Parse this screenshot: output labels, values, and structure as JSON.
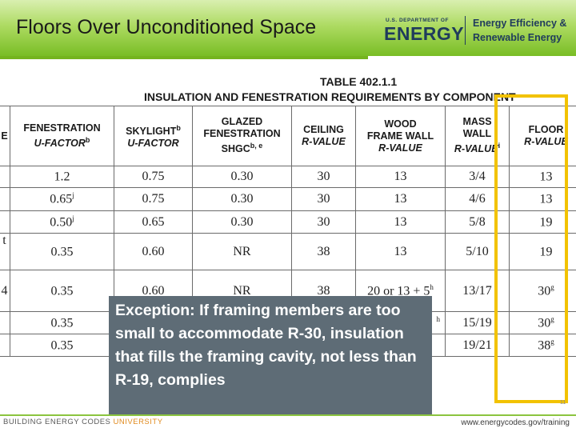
{
  "header": {
    "title": "Floors Over Unconditioned Space",
    "doe_small": "U.S. DEPARTMENT OF",
    "doe_big": "ENERGY",
    "eere_line1": "Energy Efficiency &",
    "eere_line2": "Renewable Energy"
  },
  "table": {
    "title_line1": "TABLE 402.1.1",
    "title_line2": "INSULATION AND FENESTRATION REQUIREMENTS BY COMPONENT",
    "columns": [
      {
        "line1": "E",
        "line2": ""
      },
      {
        "line1": "FENESTRATION",
        "line2": "U-FACTOR",
        "sup": "b"
      },
      {
        "line1": "SKYLIGHT",
        "sup1": "b",
        "line2": "U-FACTOR"
      },
      {
        "line1": "GLAZED",
        "line2": "FENESTRATION",
        "line3": "SHGC",
        "sup": "b, e"
      },
      {
        "line1": "",
        "line2": "CEILING",
        "line3": "R-VALUE"
      },
      {
        "line1": "WOOD",
        "line2": "FRAME WALL",
        "line3": "R-VALUE"
      },
      {
        "line1": "MASS",
        "line2": "WALL",
        "line3": "R-VALUE",
        "sup": "i"
      },
      {
        "line1": "",
        "line2": "FLOOR",
        "line3": "R-VALUE"
      }
    ],
    "rows": [
      {
        "zone": "",
        "fen": "1.2",
        "fen_sup": "",
        "sky": "0.75",
        "shgc": "0.30",
        "ceiling": "30",
        "wood": "13",
        "mass": "3/4",
        "floor": "13",
        "floor_sup": ""
      },
      {
        "zone": "",
        "fen": "0.65",
        "fen_sup": "j",
        "sky": "0.75",
        "shgc": "0.30",
        "ceiling": "30",
        "wood": "13",
        "mass": "4/6",
        "floor": "13",
        "floor_sup": ""
      },
      {
        "zone": "",
        "fen": "0.50",
        "fen_sup": "j",
        "sky": "0.65",
        "shgc": "0.30",
        "ceiling": "30",
        "wood": "13",
        "mass": "5/8",
        "floor": "19",
        "floor_sup": ""
      },
      {
        "zone": "t",
        "fen": "0.35",
        "fen_sup": "",
        "sky": "0.60",
        "shgc": "NR",
        "ceiling": "38",
        "wood": "13",
        "mass": "5/10",
        "floor": "19",
        "floor_sup": ""
      },
      {
        "zone": "4",
        "fen": "0.35",
        "fen_sup": "",
        "sky": "0.60",
        "shgc": "NR",
        "ceiling": "38",
        "wood": "20 or 13 + 5",
        "wood_sup": "h",
        "mass": "13/17",
        "floor": "30",
        "floor_sup": "g"
      },
      {
        "zone": "",
        "fen": "0.35",
        "fen_sup": "",
        "sky": "",
        "shgc": "",
        "ceiling": "",
        "wood": "",
        "wood_sup": "h",
        "mass": "15/19",
        "floor": "30",
        "floor_sup": "g"
      },
      {
        "zone": "",
        "fen": "0.35",
        "fen_sup": "",
        "sky": "",
        "shgc": "",
        "ceiling": "",
        "wood": "",
        "mass": "19/21",
        "floor": "38",
        "floor_sup": "g"
      }
    ]
  },
  "exception_text": "Exception:  If framing members are too small to accommodate R-30, insulation that fills the framing cavity, not less than R-19, complies",
  "footer": {
    "left_part1": "BUILDING ENERGY CODES ",
    "left_part2": "UNIVERSITY",
    "right": "www.energycodes.gov/training",
    "page_number": "11"
  },
  "colors": {
    "header_green": "#79bd25",
    "highlight": "#f2c200",
    "exception_bg": "#5e6c76",
    "doe_navy": "#1f3b5c"
  }
}
